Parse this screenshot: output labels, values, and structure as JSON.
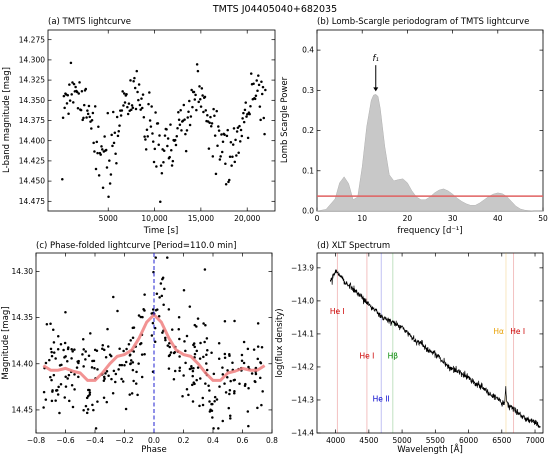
{
  "figure_title": "TMTS J04405040+682035",
  "chart_data": [
    {
      "id": "a",
      "type": "scatter",
      "title": "(a) TMTS lightcurve",
      "xlabel": "Time [s]",
      "ylabel": "L-band magnitude [mag]",
      "xlim": [
        -1500,
        23000
      ],
      "ylim": [
        14.487,
        14.263
      ],
      "y_inverted": true,
      "xticks": [
        5000,
        10000,
        15000,
        20000
      ],
      "xtick_labels": [
        "5000",
        "10,000",
        "15,000",
        "20,000"
      ],
      "yticks": [
        14.275,
        14.3,
        14.325,
        14.35,
        14.375,
        14.4,
        14.425,
        14.45,
        14.475
      ],
      "ytick_labels": [
        "14.275",
        "14.300",
        "14.325",
        "14.350",
        "14.375",
        "14.400",
        "14.425",
        "14.450",
        "14.475"
      ],
      "series": [
        {
          "marker": "dot",
          "color": "#000000",
          "period_s": 6600,
          "n_points": 260,
          "x_range": [
            0,
            22000
          ],
          "mean_mag": 14.378,
          "semi_amplitude_mag": 0.033,
          "scatter_mag": 0.03
        }
      ]
    },
    {
      "id": "b",
      "type": "area",
      "title": "(b) Lomb-Scargle periodogram of TMTS lightcurve",
      "xlabel": "frequency [d⁻¹]",
      "ylabel": "Lomb Scargle Power",
      "xlim": [
        0,
        50
      ],
      "ylim": [
        0,
        0.45
      ],
      "xticks": [
        0,
        10,
        20,
        30,
        40,
        50
      ],
      "yticks": [
        0.0,
        0.1,
        0.2,
        0.3,
        0.4
      ],
      "ytick_labels": [
        "0.0",
        "0.1",
        "0.2",
        "0.3",
        "0.4"
      ],
      "series": [
        {
          "color": "#c8c8c8",
          "x": [
            0,
            2,
            4,
            5,
            6,
            7,
            8,
            9,
            10,
            11,
            12,
            12.5,
            13,
            13.5,
            14,
            15,
            16,
            17,
            18,
            19,
            20,
            21,
            22,
            23,
            24,
            25,
            26,
            27,
            28,
            29,
            30,
            31,
            32,
            33,
            34,
            35,
            36,
            37,
            38,
            39,
            40,
            41,
            42,
            43,
            44,
            45,
            46,
            47,
            48,
            50
          ],
          "y": [
            0.0,
            0.004,
            0.03,
            0.07,
            0.085,
            0.068,
            0.028,
            0.035,
            0.11,
            0.21,
            0.275,
            0.288,
            0.29,
            0.285,
            0.255,
            0.16,
            0.09,
            0.075,
            0.078,
            0.08,
            0.07,
            0.05,
            0.035,
            0.028,
            0.028,
            0.035,
            0.045,
            0.052,
            0.055,
            0.05,
            0.042,
            0.032,
            0.024,
            0.018,
            0.014,
            0.014,
            0.02,
            0.028,
            0.036,
            0.042,
            0.045,
            0.043,
            0.036,
            0.024,
            0.012,
            0.005,
            0.002,
            0.001,
            0.0,
            0.0
          ]
        }
      ],
      "threshold_line": {
        "y": 0.037,
        "color": "#e06060"
      },
      "annotation": {
        "label": "f₁",
        "x": 13,
        "y_tip": 0.295,
        "y_text": 0.37
      }
    },
    {
      "id": "c",
      "type": "scatter",
      "title": "(c) Phase-folded lightcurve [Period=110.0 min]",
      "xlabel": "Phase",
      "ylabel": "Magnitude [mag]",
      "xlim": [
        -0.8,
        0.8
      ],
      "ylim": [
        14.475,
        14.28
      ],
      "y_inverted": true,
      "xticks": [
        -0.8,
        -0.6,
        -0.4,
        -0.2,
        0.0,
        0.2,
        0.4,
        0.6,
        0.8
      ],
      "xtick_labels": [
        "−0.8",
        "−0.6",
        "−0.4",
        "−0.2",
        "0.0",
        "0.2",
        "0.4",
        "0.6",
        "0.8"
      ],
      "yticks": [
        14.3,
        14.35,
        14.4,
        14.45
      ],
      "ytick_labels": [
        "14.30",
        "14.35",
        "14.40",
        "14.45"
      ],
      "series": [
        {
          "marker": "dot",
          "color": "#000000",
          "n_points": 340,
          "x_range": [
            -0.75,
            0.75
          ]
        },
        {
          "type": "line",
          "color": "#f08080",
          "x": [
            -0.75,
            -0.7,
            -0.65,
            -0.6,
            -0.55,
            -0.5,
            -0.45,
            -0.4,
            -0.35,
            -0.3,
            -0.25,
            -0.2,
            -0.15,
            -0.1,
            -0.05,
            0.0,
            0.05,
            0.1,
            0.15,
            0.2,
            0.25,
            0.3,
            0.35,
            0.4,
            0.45,
            0.5,
            0.55,
            0.6,
            0.65,
            0.7,
            0.75
          ],
          "y": [
            14.402,
            14.407,
            14.407,
            14.405,
            14.408,
            14.41,
            14.418,
            14.418,
            14.41,
            14.4,
            14.392,
            14.39,
            14.385,
            14.372,
            14.355,
            14.347,
            14.355,
            14.372,
            14.385,
            14.39,
            14.392,
            14.4,
            14.41,
            14.418,
            14.418,
            14.41,
            14.408,
            14.405,
            14.407,
            14.407,
            14.402
          ]
        }
      ],
      "vline": {
        "x": 0.0,
        "color": "#2020d0"
      }
    },
    {
      "id": "d",
      "type": "line",
      "title": "(d) XLT Spectrum",
      "xlabel": "Wavelength [Å]",
      "ylabel": "log(flux density)",
      "xlim": [
        3720,
        7120
      ],
      "ylim": [
        -14.4,
        -13.855
      ],
      "xticks": [
        4000,
        4500,
        5000,
        5500,
        6000,
        6500,
        7000
      ],
      "yticks": [
        -13.9,
        -14.0,
        -14.1,
        -14.2,
        -14.3,
        -14.4
      ],
      "ytick_labels": [
        "−13.9",
        "−14.0",
        "−14.1",
        "−14.2",
        "−14.3",
        "−14.4"
      ],
      "series": [
        {
          "color": "#000000",
          "x": [
            3920,
            3950,
            4000,
            4050,
            4100,
            4150,
            4200,
            4300,
            4400,
            4500,
            4600,
            4700,
            4800,
            4900,
            5000,
            5100,
            5200,
            5300,
            5400,
            5500,
            5600,
            5700,
            5800,
            5900,
            6000,
            6100,
            6200,
            6300,
            6400,
            6500,
            6550,
            6560,
            6570,
            6600,
            6700,
            6800,
            6900,
            7000,
            7080
          ],
          "y": [
            -13.94,
            -13.93,
            -13.91,
            -13.92,
            -13.93,
            -13.95,
            -13.95,
            -13.97,
            -13.99,
            -14.01,
            -14.03,
            -14.05,
            -14.06,
            -14.07,
            -14.08,
            -14.1,
            -14.12,
            -14.13,
            -14.15,
            -14.16,
            -14.18,
            -14.2,
            -14.21,
            -14.22,
            -14.23,
            -14.25,
            -14.26,
            -14.28,
            -14.29,
            -14.31,
            -14.3,
            -14.26,
            -14.3,
            -14.32,
            -14.33,
            -14.35,
            -14.36,
            -14.37,
            -14.38
          ]
        }
      ],
      "lines": [
        {
          "x": 4026,
          "label": "He I",
          "color": "#cc0000",
          "label_y": -14.04
        },
        {
          "x": 4471,
          "label": "He I",
          "color": "#cc0000",
          "label_y": -14.175
        },
        {
          "x": 4686,
          "label": "He II",
          "color": "#0000cc",
          "label_y": -14.305
        },
        {
          "x": 4861,
          "label": "Hβ",
          "color": "#008800",
          "label_y": -14.175
        },
        {
          "x": 6563,
          "label": "Hα",
          "color": "#e8a000",
          "label_y": -14.1
        },
        {
          "x": 6678,
          "label": "He I",
          "color": "#cc0000",
          "label_y": -14.1
        }
      ]
    }
  ]
}
